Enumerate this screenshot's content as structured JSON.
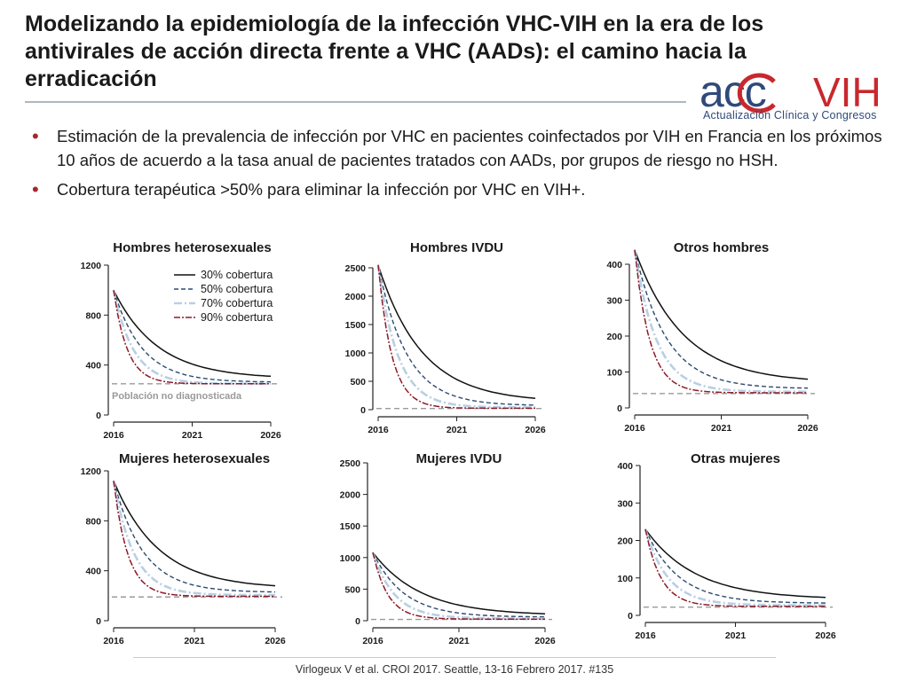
{
  "title": "Modelizando la epidemiología de la infección VHC-VIH en la era de los antivirales de acción directa frente a VHC (AADs): el camino hacia la erradicación",
  "logo": {
    "main": "acc VIH",
    "subtitle": "Actualización Clínica y Congresos"
  },
  "bullets": [
    "Estimación de la prevalencia de infección por VHC en pacientes coinfectados por VIH en Francia en los próximos 10 años de acuerdo a la tasa anual de pacientes tratados con AADs, por grupos de riesgo no HSH.",
    "Cobertura terapéutica >50% para eliminar la infección por VHC en VIH+."
  ],
  "citation": "Virlogeux V et al. CROI 2017. Seattle, 13-16 Febrero 2017. #135",
  "colors": {
    "cov30": "#111111",
    "cov50": "#2c4b70",
    "cov70": "#b9cfe3",
    "cov90": "#8b1a2a",
    "undiagnosed": "#9a9a9a",
    "bullet": "#a8262b"
  },
  "chart_data": [
    {
      "type": "line",
      "title": "Hombres heterosexuales",
      "x": [
        2016,
        2021,
        2026
      ],
      "xticks": [
        "2016",
        "2021",
        "2026"
      ],
      "yticks": [
        "0",
        "400",
        "800",
        "1200"
      ],
      "ylim": [
        0,
        1200
      ],
      "start": 1000,
      "undiagnosed": 250,
      "undiagnosed_label": "Población no diagnosticada",
      "series": [
        {
          "name": "30% cobertura",
          "end": 310
        },
        {
          "name": "50% cobertura",
          "end": 265
        },
        {
          "name": "70% cobertura",
          "end": 250
        },
        {
          "name": "90% cobertura",
          "end": 250
        }
      ],
      "legend": "top-right"
    },
    {
      "type": "line",
      "title": "Hombres IVDU",
      "x": [
        2016,
        2021,
        2026
      ],
      "xticks": [
        "2016",
        "2021",
        "2026"
      ],
      "yticks": [
        "0",
        "500",
        "1000",
        "1500",
        "2000",
        "2500"
      ],
      "ylim": [
        0,
        2500
      ],
      "start": 2550,
      "undiagnosed": 20,
      "series": [
        {
          "name": "30% cobertura",
          "end": 200
        },
        {
          "name": "50% cobertura",
          "end": 80
        },
        {
          "name": "70% cobertura",
          "end": 40
        },
        {
          "name": "90% cobertura",
          "end": 25
        }
      ]
    },
    {
      "type": "line",
      "title": "Otros hombres",
      "x": [
        2016,
        2021,
        2026
      ],
      "xticks": [
        "2016",
        "2021",
        "2026"
      ],
      "yticks": [
        "0",
        "100",
        "200",
        "300",
        "400"
      ],
      "ylim": [
        0,
        400
      ],
      "start": 440,
      "undiagnosed": 40,
      "series": [
        {
          "name": "30% cobertura",
          "end": 80
        },
        {
          "name": "50% cobertura",
          "end": 55
        },
        {
          "name": "70% cobertura",
          "end": 45
        },
        {
          "name": "90% cobertura",
          "end": 42
        }
      ]
    },
    {
      "type": "line",
      "title": "Mujeres heterosexuales",
      "x": [
        2016,
        2021,
        2026
      ],
      "xticks": [
        "2016",
        "2021",
        "2026"
      ],
      "yticks": [
        "0",
        "400",
        "800",
        "1200"
      ],
      "ylim": [
        0,
        1200
      ],
      "start": 1120,
      "undiagnosed": 190,
      "series": [
        {
          "name": "30% cobertura",
          "end": 280
        },
        {
          "name": "50% cobertura",
          "end": 230
        },
        {
          "name": "70% cobertura",
          "end": 205
        },
        {
          "name": "90% cobertura",
          "end": 195
        }
      ]
    },
    {
      "type": "line",
      "title": "Mujeres IVDU",
      "x": [
        2016,
        2021,
        2026
      ],
      "xticks": [
        "2016",
        "2021",
        "2026"
      ],
      "yticks": [
        "0",
        "500",
        "1000",
        "1500",
        "2000",
        "2500"
      ],
      "ylim": [
        0,
        2500
      ],
      "start": 1080,
      "undiagnosed": 20,
      "series": [
        {
          "name": "30% cobertura",
          "end": 110
        },
        {
          "name": "50% cobertura",
          "end": 60
        },
        {
          "name": "70% cobertura",
          "end": 35
        },
        {
          "name": "90% cobertura",
          "end": 25
        }
      ]
    },
    {
      "type": "line",
      "title": "Otras mujeres",
      "x": [
        2016,
        2021,
        2026
      ],
      "xticks": [
        "2016",
        "2021",
        "2026"
      ],
      "yticks": [
        "0",
        "100",
        "200",
        "300",
        "400"
      ],
      "ylim": [
        0,
        400
      ],
      "start": 230,
      "undiagnosed": 22,
      "series": [
        {
          "name": "30% cobertura",
          "end": 48
        },
        {
          "name": "50% cobertura",
          "end": 33
        },
        {
          "name": "70% cobertura",
          "end": 27
        },
        {
          "name": "90% cobertura",
          "end": 24
        }
      ]
    }
  ]
}
